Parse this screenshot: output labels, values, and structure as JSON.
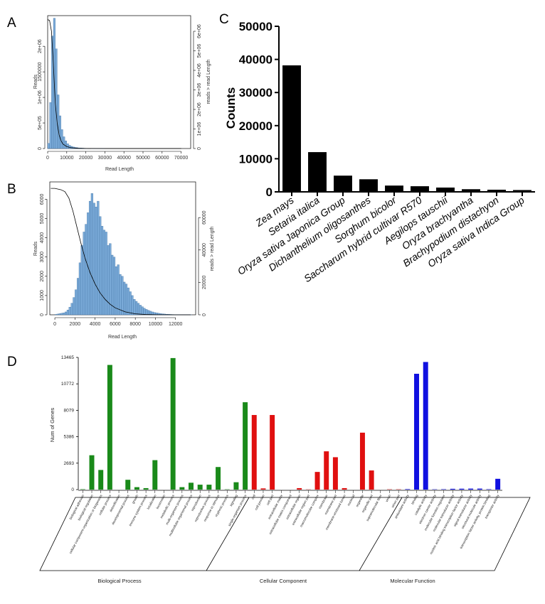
{
  "panels": {
    "a": "A",
    "b": "B",
    "c": "C",
    "d": "D"
  },
  "chart_data": [
    {
      "id": "A",
      "type": "bar",
      "xlabel": "Read Length",
      "ylabel": "Reads",
      "y2label": "reads > read Length",
      "xlim": [
        0,
        75000
      ],
      "ylim": [
        0,
        2600000
      ],
      "y2lim": [
        0,
        6800000
      ],
      "xticks": [
        "0",
        "10000",
        "20000",
        "30000",
        "40000",
        "50000",
        "60000",
        "70000"
      ],
      "xtick_values": [
        0,
        10000,
        20000,
        30000,
        40000,
        50000,
        60000,
        70000
      ],
      "yticks": [
        "0",
        "5e+05",
        "1e+06",
        "1500000",
        "2e+06"
      ],
      "ytick_values": [
        0,
        500000,
        1000000,
        1500000,
        2000000
      ],
      "y2ticks": [
        "0",
        "1e+06",
        "2e+06",
        "3e+06",
        "4e+06",
        "5e+06",
        "6e+06"
      ],
      "y2tick_values": [
        0,
        1000000,
        2000000,
        3000000,
        4000000,
        5000000,
        6000000
      ],
      "bin_start": 0,
      "bin_width": 1000,
      "values": [
        100000,
        900000,
        2200000,
        2550000,
        1950000,
        1050000,
        640000,
        370000,
        230000,
        150000,
        95000,
        62000,
        42000,
        30000,
        22000,
        16000,
        12000,
        9000,
        7000,
        5000,
        3500,
        2500,
        1800,
        1300,
        900,
        700,
        500,
        350,
        250,
        150
      ],
      "cumulative": [
        [
          0,
          6600000
        ],
        [
          1000,
          6550000
        ],
        [
          2000,
          6000000
        ],
        [
          3000,
          4300000
        ],
        [
          4000,
          2300000
        ],
        [
          5000,
          1300000
        ],
        [
          6000,
          700000
        ],
        [
          7000,
          400000
        ],
        [
          8000,
          230000
        ],
        [
          10000,
          100000
        ],
        [
          12000,
          45000
        ],
        [
          16000,
          12000
        ],
        [
          20000,
          4000
        ],
        [
          30000,
          800
        ],
        [
          40000,
          100
        ],
        [
          50000,
          0
        ],
        [
          70000,
          0
        ]
      ]
    },
    {
      "id": "B",
      "type": "bar",
      "xlabel": "Read Length",
      "ylabel": "Reads",
      "y2label": "reads > read Length",
      "xlim": [
        -500,
        14000
      ],
      "ylim": [
        0,
        6900
      ],
      "y2lim": [
        0,
        82000
      ],
      "xticks": [
        "0",
        "2000",
        "4000",
        "6000",
        "8000",
        "10000",
        "12000"
      ],
      "xtick_values": [
        0,
        2000,
        4000,
        6000,
        8000,
        10000,
        12000
      ],
      "yticks": [
        "0",
        "1000",
        "2000",
        "3000",
        "4000",
        "5000",
        "6000"
      ],
      "ytick_values": [
        0,
        1000,
        2000,
        3000,
        4000,
        5000,
        6000
      ],
      "y2ticks": [
        "0",
        "20000",
        "40000",
        "60000"
      ],
      "y2tick_values": [
        0,
        20000,
        40000,
        60000
      ],
      "bin_start": 0,
      "bin_width": 200,
      "values": [
        20,
        40,
        60,
        80,
        100,
        150,
        250,
        400,
        600,
        900,
        1300,
        1900,
        2700,
        3600,
        4300,
        4700,
        5300,
        5900,
        6300,
        5800,
        5600,
        5900,
        5100,
        4600,
        4400,
        4300,
        3600,
        3700,
        3100,
        3000,
        2500,
        2600,
        2100,
        2000,
        1700,
        1600,
        1400,
        1200,
        1000,
        800,
        700,
        600,
        500,
        420,
        340,
        280,
        230,
        190,
        150,
        120,
        100,
        80,
        60,
        50,
        40,
        30,
        25,
        20,
        15,
        12,
        10,
        8,
        6,
        5,
        4,
        4,
        3,
        3
      ],
      "cumulative": [
        [
          -400,
          78000
        ],
        [
          0,
          78000
        ],
        [
          600,
          77200
        ],
        [
          1000,
          76000
        ],
        [
          1400,
          72000
        ],
        [
          1800,
          64000
        ],
        [
          2200,
          54000
        ],
        [
          2600,
          44000
        ],
        [
          3000,
          35000
        ],
        [
          3500,
          26000
        ],
        [
          4000,
          19000
        ],
        [
          4500,
          13500
        ],
        [
          5000,
          9500
        ],
        [
          5500,
          6500
        ],
        [
          6000,
          4300
        ],
        [
          7000,
          1800
        ],
        [
          8000,
          600
        ],
        [
          9000,
          200
        ],
        [
          10000,
          60
        ],
        [
          12000,
          10
        ],
        [
          13500,
          0
        ]
      ]
    },
    {
      "id": "C",
      "type": "bar",
      "ylabel": "Counts",
      "ylim": [
        0,
        50000
      ],
      "yticks": [
        "0",
        "10000",
        "20000",
        "30000",
        "40000",
        "50000"
      ],
      "ytick_values": [
        0,
        10000,
        20000,
        30000,
        40000,
        50000
      ],
      "categories": [
        "Zea mays",
        "Setaria italica",
        "Oryza sativa Japonica Group",
        "Dichanthelium oligosanthes",
        "Sorghum bicolor",
        "Saccharum hybrid cultivar R570",
        "Aegilops tauschii",
        "Oryza brachyantha",
        "Brachypodium distachyon",
        "Oryza sativa Indica Group"
      ],
      "values": [
        38200,
        12000,
        4900,
        3800,
        1900,
        1700,
        1300,
        800,
        650,
        550
      ],
      "bar_color": "#000000"
    },
    {
      "id": "D",
      "type": "bar",
      "ylabel": "Num of Genes",
      "ylim": [
        0,
        13465
      ],
      "yticks": [
        "0",
        "2693",
        "5386",
        "8079",
        "10772",
        "13465"
      ],
      "ytick_values": [
        0,
        2693,
        5386,
        8079,
        10772,
        13465
      ],
      "groups": [
        {
          "name": "Biological Process",
          "color": "#1a8a1a",
          "categories": [
            "biological adhesion",
            "biological regulation",
            "cellular component organization or biogenesis",
            "cellular process",
            "detoxification",
            "developmental process",
            "growth",
            "immune system process",
            "localization",
            "locomotion",
            "metabolic process",
            "multi-organism process",
            "multicellular organismal process",
            "reproduction",
            "reproductive process",
            "response to stimulus",
            "rhythmic process",
            "signaling",
            "single-organism process"
          ],
          "values": [
            40,
            3500,
            2000,
            12700,
            0,
            1000,
            250,
            150,
            3000,
            0,
            13400,
            250,
            700,
            500,
            500,
            2300,
            30,
            750,
            8900
          ]
        },
        {
          "name": "Cellular Component",
          "color": "#e01010",
          "categories": [
            "cell",
            "cell junction",
            "cell part",
            "extracellular matrix",
            "extracellular matrix component",
            "extracellular region",
            "extracellular region part",
            "macromolecular complex",
            "membrane",
            "membrane part",
            "membrane-enclosed lumen",
            "nucleoid",
            "organelle",
            "organelle part",
            "supramolecular fiber",
            "virion",
            "virion part"
          ],
          "values": [
            7600,
            120,
            7600,
            0,
            0,
            150,
            20,
            1800,
            3900,
            3300,
            150,
            0,
            5800,
            1950,
            0,
            30,
            30
          ]
        },
        {
          "name": "Molecular Function",
          "color": "#1010e0",
          "categories": [
            "antioxidant activity",
            "binding",
            "catalytic activity",
            "electron carrier activity",
            "molecular function regulator",
            "molecular transducer activity",
            "nucleic acid binding transcription factor activity",
            "signal transducer activity",
            "structural molecule activity",
            "transcription factor activity, protein binding",
            "transporter activity"
          ],
          "values": [
            50,
            11800,
            13000,
            30,
            40,
            80,
            90,
            100,
            100,
            40,
            1100
          ]
        }
      ]
    }
  ]
}
